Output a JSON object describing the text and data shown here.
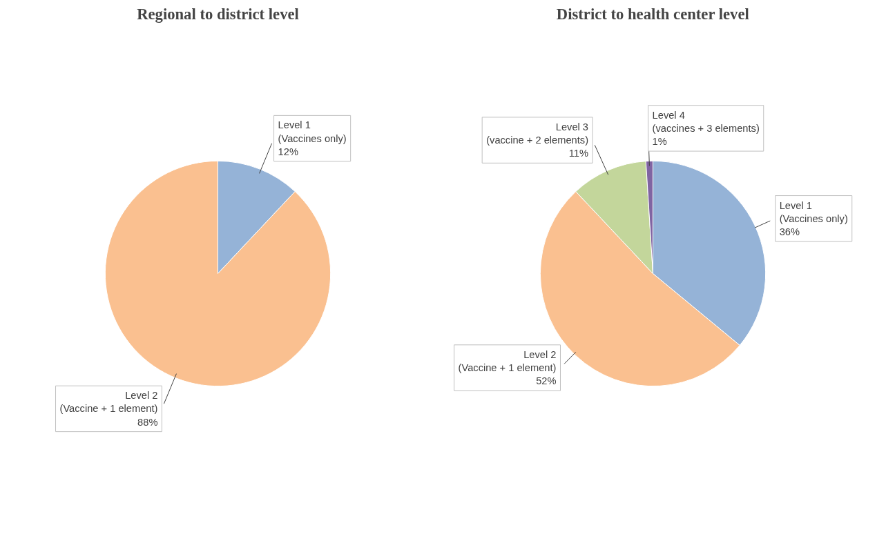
{
  "chart_data": [
    {
      "type": "pie",
      "title": "Regional to district level",
      "categories": [
        "Level 1 (Vaccines only)",
        "Level 2 (Vaccine + 1 element)"
      ],
      "values": [
        12,
        88
      ],
      "colors": [
        "#95b3d7",
        "#fac090"
      ],
      "value_labels": [
        "12%",
        "88%"
      ]
    },
    {
      "type": "pie",
      "title": "District to health center level",
      "categories": [
        "Level 1 (Vaccines only)",
        "Level 2 (Vaccine + 1 element)",
        "Level 3 (vaccine + 2 elements)",
        "Level 4 (vaccines + 3 elements)"
      ],
      "values": [
        36,
        52,
        11,
        1
      ],
      "colors": [
        "#95b3d7",
        "#fac090",
        "#c3d69b",
        "#8064a2"
      ],
      "value_labels": [
        "36%",
        "52%",
        "11%",
        "1%"
      ]
    }
  ]
}
